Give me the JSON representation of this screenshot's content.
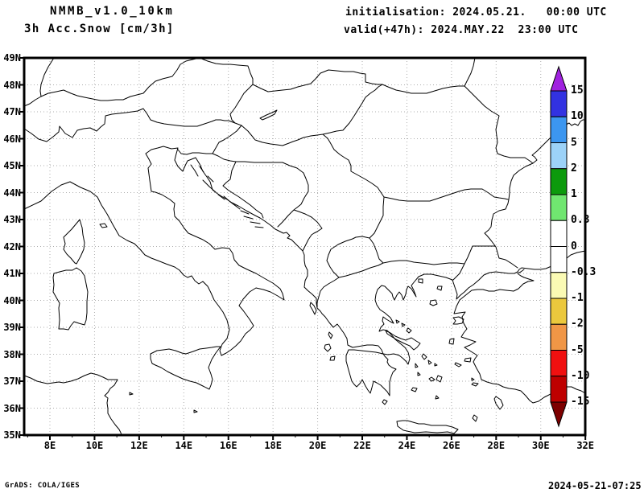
{
  "header": {
    "model": "NMMB_v1.0_10km",
    "variable": "3h Acc.Snow [cm/3h]",
    "initialisation": "initialisation: 2024.05.21.   00:00 UTC",
    "valid": "valid(+47h): 2024.MAY.22  23:00 UTC"
  },
  "map": {
    "lat_labels": [
      "49N",
      "48N",
      "47N",
      "46N",
      "45N",
      "44N",
      "43N",
      "42N",
      "41N",
      "40N",
      "39N",
      "38N",
      "37N",
      "36N",
      "35N"
    ],
    "lon_labels": [
      "8E",
      "10E",
      "12E",
      "14E",
      "16E",
      "18E",
      "20E",
      "22E",
      "24E",
      "26E",
      "28E",
      "30E",
      "32E"
    ],
    "grid_color": "#ADADAD",
    "coast_color": "#000000"
  },
  "colorbar": {
    "levels": [
      "15",
      "10",
      "5",
      "2",
      "1",
      "0.3",
      "0",
      "-0.3",
      "-1",
      "-2",
      "-5",
      "-10",
      "-15"
    ],
    "segment_colors": [
      "#3232E1",
      "#3C96F0",
      "#9CD2F8",
      "#0C9A0C",
      "#70E670",
      "#FFFFFF",
      "#FFFFFF",
      "#FAFAB4",
      "#EBC83D",
      "#F09646",
      "#F01010",
      "#BE0000"
    ],
    "arrow_top_color": "#A021E0",
    "arrow_bottom_color": "#7D0000"
  },
  "footer": {
    "left": "GrADS: COLA/IGES",
    "right": "2024-05-21-07:25"
  }
}
